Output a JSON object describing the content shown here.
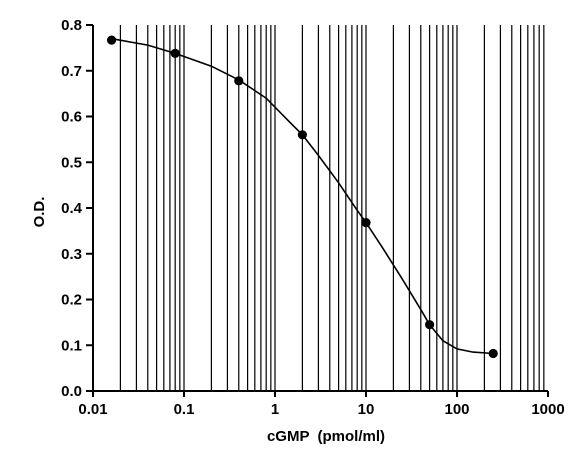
{
  "chart_data": {
    "type": "scatter",
    "title": "",
    "xlabel": "cGMP  (pmol/ml)",
    "ylabel": "O.D.",
    "x_scale": "log",
    "xlim": [
      0.01,
      1000
    ],
    "ylim": [
      0.0,
      0.8
    ],
    "grid": "vertical-minor-log",
    "x_ticks": [
      "0.01",
      "0.1",
      "1",
      "10",
      "100",
      "1000"
    ],
    "y_ticks": [
      "0.0",
      "0.1",
      "0.2",
      "0.3",
      "0.4",
      "0.5",
      "0.6",
      "0.7",
      "0.8"
    ],
    "points": {
      "x": [
        0.016,
        0.08,
        0.4,
        2.0,
        10.0,
        50.0,
        250.0
      ],
      "y": [
        0.767,
        0.738,
        0.678,
        0.56,
        0.368,
        0.145,
        0.082
      ]
    },
    "curve": {
      "x": [
        0.016,
        0.04,
        0.08,
        0.2,
        0.4,
        0.8,
        1.5,
        2.0,
        3,
        5,
        8,
        10,
        15,
        25,
        40,
        50,
        70,
        100,
        150,
        250
      ],
      "y": [
        0.77,
        0.756,
        0.738,
        0.71,
        0.68,
        0.64,
        0.585,
        0.56,
        0.515,
        0.455,
        0.395,
        0.368,
        0.315,
        0.245,
        0.178,
        0.145,
        0.11,
        0.092,
        0.085,
        0.082
      ]
    },
    "colors": {
      "marks": "#000000",
      "background": "#ffffff"
    }
  }
}
